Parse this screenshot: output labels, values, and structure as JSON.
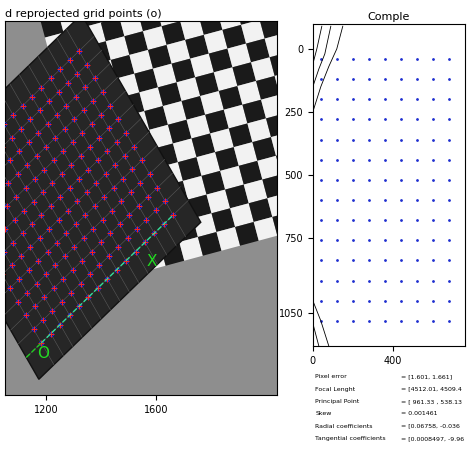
{
  "chart_data": [
    {
      "type": "image_grid",
      "title": "d reprojected grid points (o)",
      "xlim": [
        1050,
        2040
      ],
      "ylim": [
        1380,
        30
      ],
      "xticks": [
        1200,
        1600
      ],
      "tick_labels": "x",
      "grid_points": {
        "origin": [
          1183,
          1192
        ],
        "x_step": [
          34.2,
          -33.0
        ],
        "y_step": [
          -28.5,
          -49.4
        ],
        "nx": 15,
        "ny": 13
      },
      "axis_labels": {
        "x": "X",
        "origin": "O"
      },
      "series": [
        {
          "marker": "+",
          "color": "#ff2020"
        },
        {
          "marker": "o",
          "color": "#2020ff"
        }
      ]
    },
    {
      "type": "quiver",
      "title": "Comple",
      "xlim": [
        0,
        760
      ],
      "ylim": [
        1180,
        -100
      ],
      "xticks": [
        0,
        400
      ],
      "yticks": [
        0,
        250,
        500,
        750,
        1050
      ],
      "color": "#1f2fd0",
      "vectors": {
        "x": [
          40,
          120,
          200,
          280,
          360,
          440,
          520,
          600,
          680
        ],
        "y": [
          40,
          120,
          200,
          280,
          360,
          440,
          520,
          600,
          680,
          760,
          840,
          920,
          1000,
          1080
        ]
      },
      "contours": [
        {
          "x": [
            0,
            40,
            80,
            120,
            150
          ],
          "y": [
            250,
            150,
            70,
            0,
            -90
          ]
        },
        {
          "x": [
            0,
            30,
            60,
            90
          ],
          "y": [
            150,
            80,
            20,
            -90
          ]
        },
        {
          "x": [
            0,
            20,
            45
          ],
          "y": [
            60,
            0,
            -90
          ]
        },
        {
          "x": [
            0,
            40,
            80
          ],
          "y": [
            1000,
            1080,
            1180
          ]
        },
        {
          "x": [
            0,
            30
          ],
          "y": [
            1090,
            1180
          ]
        }
      ],
      "parameters": [
        [
          "Pixel error",
          "= [1.601, 1.661]"
        ],
        [
          "Focal Lenght",
          "= [4512.01, 4509.4"
        ],
        [
          "Principal Point",
          "= [ 961.33 , 538.13"
        ],
        [
          "Skew",
          "= 0.001461"
        ],
        [
          "Radial coefficients",
          "= [0.06758, -0.036"
        ],
        [
          "Tangential coefficients",
          "= [0.0008497, -9.96"
        ]
      ]
    }
  ]
}
